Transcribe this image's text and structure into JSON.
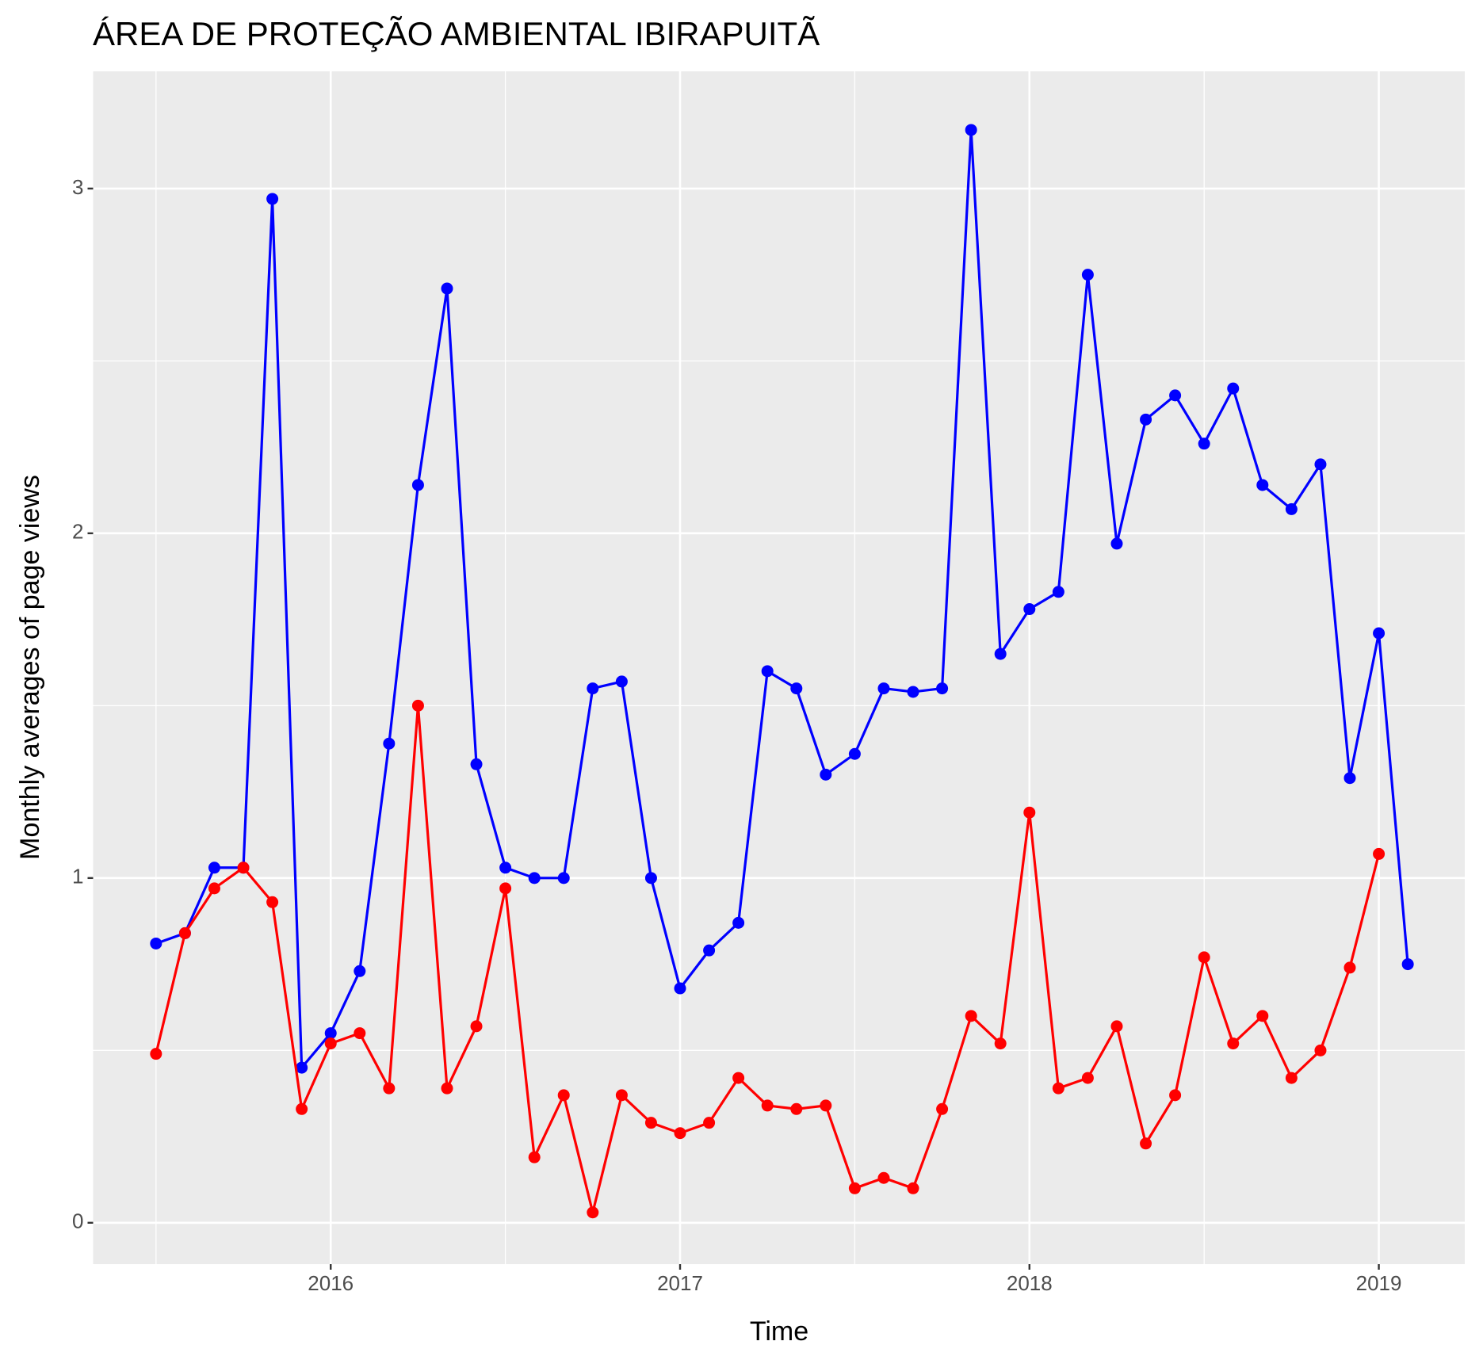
{
  "chart_data": {
    "type": "line",
    "title": "ÁREA DE PROTEÇÃO AMBIENTAL IBIRAPUITÃ",
    "xlabel": "Time",
    "ylabel": "Monthly averages of page views",
    "x": [
      2015.5,
      2015.583,
      2015.667,
      2015.75,
      2015.833,
      2015.917,
      2016,
      2016.083,
      2016.167,
      2016.25,
      2016.333,
      2016.417,
      2016.5,
      2016.583,
      2016.667,
      2016.75,
      2016.833,
      2016.917,
      2017,
      2017.083,
      2017.167,
      2017.25,
      2017.333,
      2017.417,
      2017.5,
      2017.583,
      2017.667,
      2017.75,
      2017.833,
      2017.917,
      2018,
      2018.083,
      2018.167,
      2018.25,
      2018.333,
      2018.417,
      2018.5,
      2018.583,
      2018.667,
      2018.75,
      2018.833,
      2018.917,
      2019,
      2019.083
    ],
    "series": [
      {
        "color": "#0000ff",
        "values": [
          0.81,
          0.84,
          1.03,
          1.03,
          2.97,
          0.45,
          0.55,
          0.73,
          1.39,
          2.14,
          2.71,
          1.33,
          1.03,
          1.0,
          1.0,
          1.55,
          1.57,
          1.0,
          0.68,
          0.79,
          0.87,
          1.6,
          1.55,
          1.3,
          1.36,
          1.55,
          1.54,
          1.55,
          3.17,
          1.65,
          1.78,
          1.83,
          2.75,
          1.97,
          2.33,
          2.4,
          2.26,
          2.42,
          2.14,
          2.07,
          2.2,
          1.29,
          1.71,
          0.75
        ]
      },
      {
        "color": "#ff0000",
        "values": [
          0.49,
          0.84,
          0.97,
          1.03,
          0.93,
          0.33,
          0.52,
          0.55,
          0.39,
          1.5,
          0.39,
          0.57,
          0.97,
          0.19,
          0.37,
          0.03,
          0.37,
          0.29,
          0.26,
          0.29,
          0.42,
          0.34,
          0.33,
          0.34,
          0.1,
          0.13,
          0.1,
          0.33,
          0.6,
          0.52,
          1.19,
          0.39,
          0.42,
          0.57,
          0.23,
          0.37,
          0.77,
          0.52,
          0.6,
          0.42,
          0.5,
          0.74,
          1.07,
          null
        ]
      }
    ],
    "xlim": [
      2015.32,
      2019.246
    ],
    "xticks": [
      2016,
      2017,
      2018,
      2019
    ],
    "ylim": [
      -0.12,
      3.34
    ],
    "yticks": [
      0,
      1,
      2,
      3
    ],
    "grid": true
  }
}
